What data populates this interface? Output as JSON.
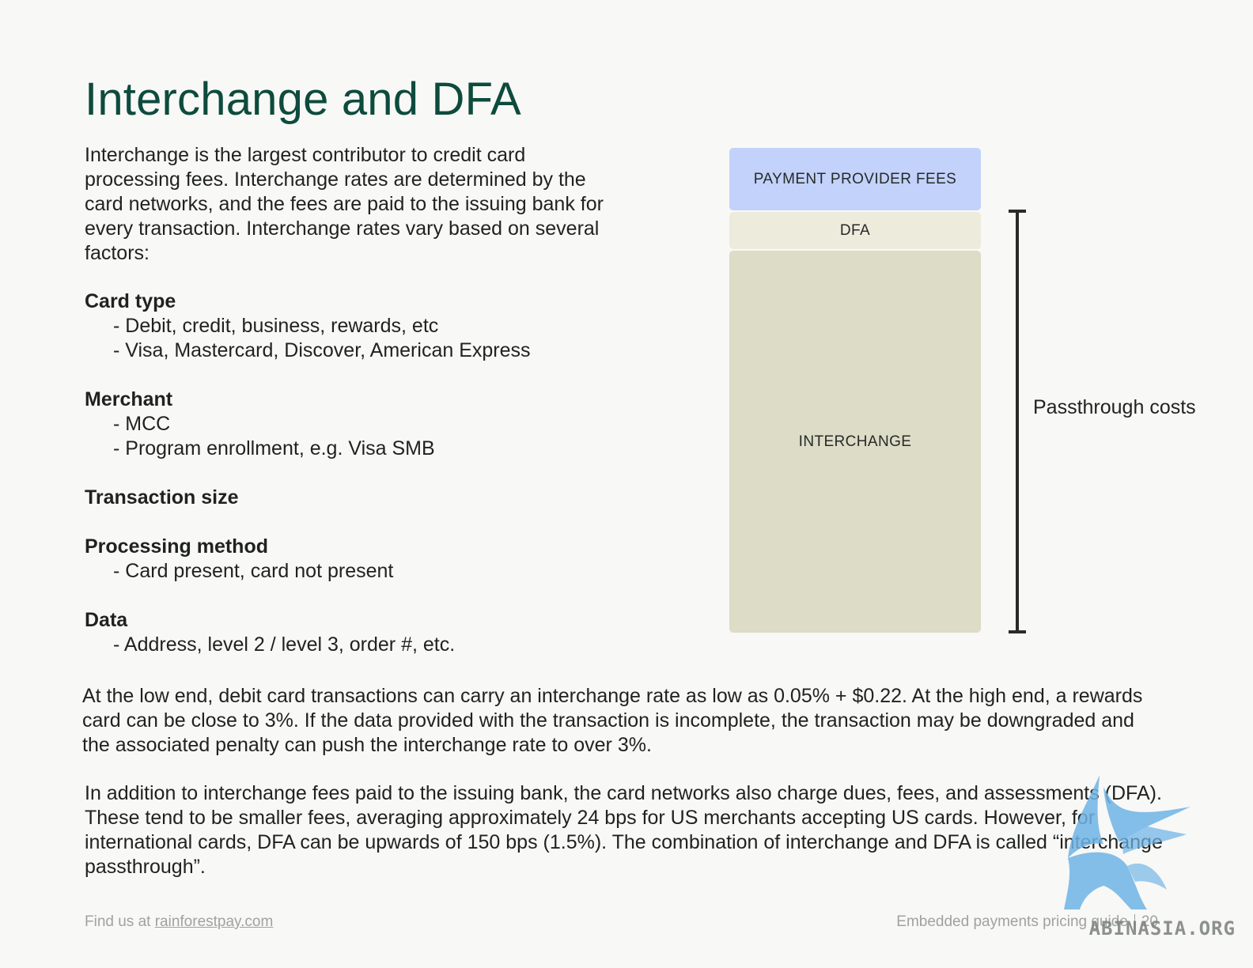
{
  "page": {
    "title": "Interchange and DFA",
    "intro": "Interchange is the largest contributor to credit card processing fees. Interchange rates are determined by the card networks, and the fees are paid to the issuing bank for every transaction. Interchange rates vary based on several factors:",
    "factors": [
      {
        "heading": "Card type",
        "items": [
          "Debit, credit, business, rewards, etc",
          "Visa, Mastercard, Discover, American Express"
        ]
      },
      {
        "heading": "Merchant",
        "items": [
          "MCC",
          "Program enrollment, e.g. Visa SMB"
        ]
      },
      {
        "heading": "Transaction size",
        "items": []
      },
      {
        "heading": "Processing method",
        "items": [
          "Card present, card not present"
        ]
      },
      {
        "heading": "Data",
        "items": [
          "Address, level 2 / level 3, order #, etc."
        ]
      }
    ],
    "paragraph_1": "At the low end, debit card transactions can carry an interchange rate as low as 0.05% + $0.22. At the high end, a rewards card can be close to 3%. If the data provided with the transaction is incomplete, the transaction may be downgraded and the associated penalty can push the interchange rate to over 3%.",
    "paragraph_2": "In addition to interchange fees paid to the issuing bank, the card networks also charge dues, fees, and assessments (DFA). These tend to be smaller fees, averaging approximately 24 bps for US merchants accepting US cards. However, for international cards, DFA can be upwards of 150 bps (1.5%). The combination of interchange and DFA is called “interchange passthrough”."
  },
  "diagram": {
    "blocks": [
      {
        "label": "PAYMENT PROVIDER FEES",
        "color": "#c2d2fb"
      },
      {
        "label": "DFA",
        "color": "#ecebdc"
      },
      {
        "label": "INTERCHANGE",
        "color": "#dcdcc7"
      }
    ],
    "bracket_label": "Passthrough costs"
  },
  "footer": {
    "left_prefix": "Find us at",
    "left_link": "rainforestpay.com",
    "right_text": "Embedded payments pricing guide",
    "page_number": "20"
  },
  "watermark": {
    "text": "ABINASIA.ORG",
    "icon": "griffin-icon"
  },
  "colors": {
    "title": "#0d4b3d",
    "background": "#f8f8f6",
    "footer_text": "#a0a39d",
    "watermark_blue": "#6fb4e6"
  }
}
